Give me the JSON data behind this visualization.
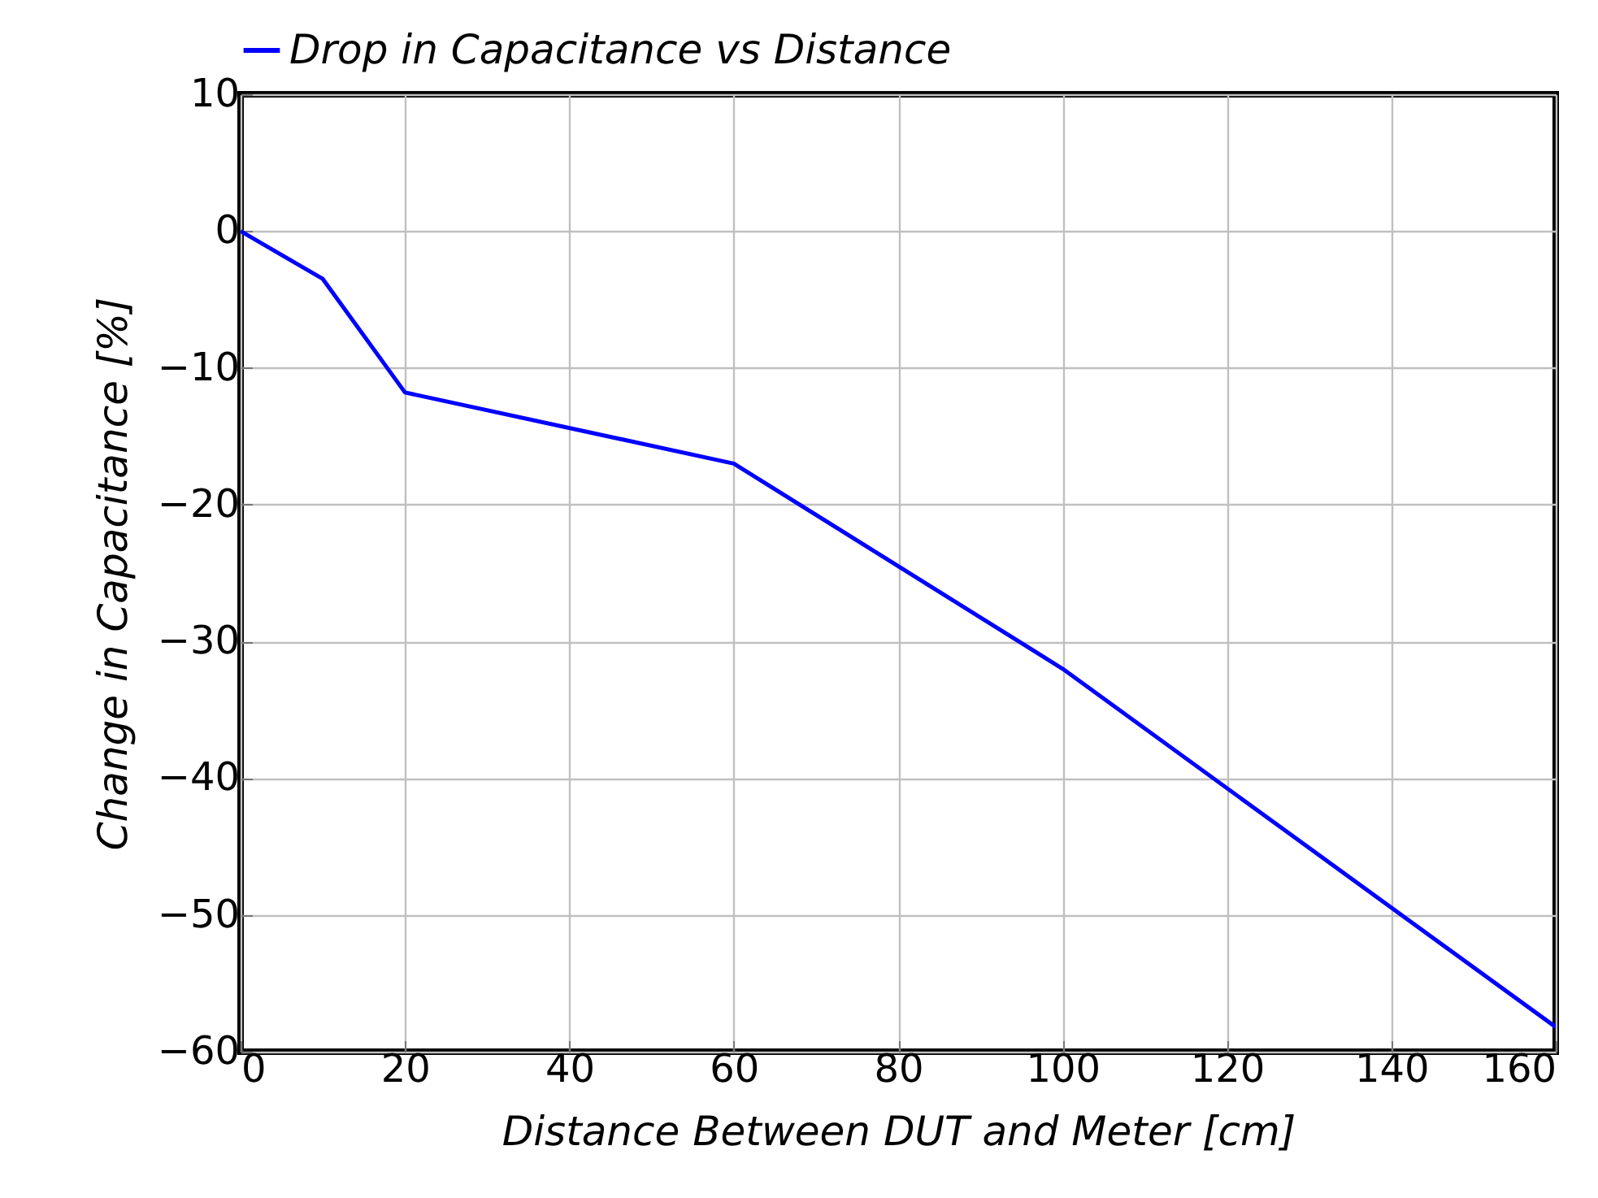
{
  "chart_data": {
    "type": "line",
    "xlabel": "Distance Between DUT and Meter [cm]",
    "ylabel": "Change in Capacitance [%]",
    "x": [
      0,
      10,
      20,
      60,
      100,
      160
    ],
    "series": [
      {
        "name": "Drop in Capacitance vs Distance",
        "color": "#0000ff",
        "values": [
          0,
          -3.5,
          -11.8,
          -17,
          -32,
          -58.2
        ]
      }
    ],
    "xlim": [
      0,
      160
    ],
    "xticks": [
      0,
      20,
      40,
      60,
      80,
      100,
      120,
      140,
      160
    ],
    "ylim": [
      -60,
      10
    ],
    "yticks": [
      -60,
      -50,
      -40,
      -30,
      -20,
      -10,
      0,
      10
    ],
    "grid": true,
    "legend": "top",
    "marker": "none",
    "line_style": "solid"
  }
}
